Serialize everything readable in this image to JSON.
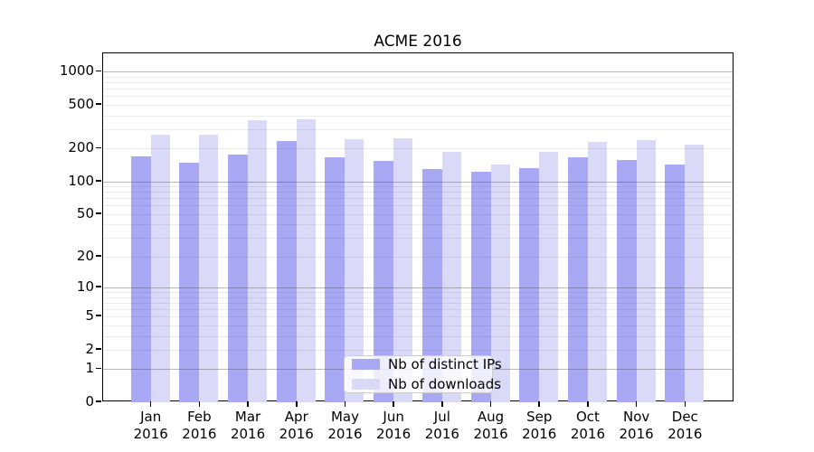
{
  "title": "ACME 2016",
  "chart_data": {
    "type": "bar",
    "title": "ACME 2016",
    "categories": [
      "Jan",
      "Feb",
      "Mar",
      "Apr",
      "May",
      "Jun",
      "Jul",
      "Aug",
      "Sep",
      "Oct",
      "Nov",
      "Dec"
    ],
    "category_year": "2016",
    "series": [
      {
        "name": "Nb of distinct IPs",
        "color": "#a8a8f5",
        "values": [
          171,
          149,
          176,
          234,
          165,
          153,
          130,
          122,
          133,
          165,
          157,
          143
        ]
      },
      {
        "name": "Nb of downloads",
        "color": "#dadaf8",
        "values": [
          267,
          268,
          359,
          367,
          242,
          249,
          185,
          142,
          185,
          231,
          241,
          217
        ]
      }
    ],
    "xlabel": "",
    "ylabel": "",
    "y_scale": "symlog-ln(1+v)",
    "ylim": [
      0,
      1470
    ],
    "y_ticks": [
      1000,
      500,
      200,
      100,
      50,
      20,
      10,
      5,
      2,
      1,
      0
    ],
    "y_major_gridlines": [
      1,
      10,
      100,
      1000
    ],
    "grid": true,
    "legend_position": "lower center"
  },
  "colors": {
    "background": "#ffffff",
    "spine": "#000000",
    "text": "#000000",
    "legend_border": "#cccccc"
  }
}
